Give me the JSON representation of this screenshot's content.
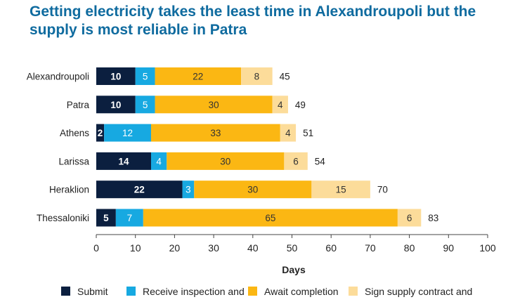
{
  "chart_data": {
    "type": "bar",
    "orientation": "horizontal",
    "stacked": true,
    "title": "Getting electricity takes the least time in Alexandroupoli but the supply is most reliable in Patra",
    "xlabel": "Days",
    "ylabel": "",
    "xlim": [
      0,
      100
    ],
    "xticks": [
      "0",
      "10",
      "20",
      "30",
      "40",
      "50",
      "60",
      "70",
      "80",
      "90",
      "100"
    ],
    "grid": false,
    "legend_position": "bottom",
    "categories": [
      "Alexandroupoli",
      "Patra",
      "Athens",
      "Larissa",
      "Heraklion",
      "Thessaloniki"
    ],
    "series": [
      {
        "name": "Submit",
        "values": [
          10,
          10,
          2,
          14,
          22,
          5
        ]
      },
      {
        "name": "Receive inspection and",
        "values": [
          5,
          5,
          12,
          4,
          3,
          7
        ]
      },
      {
        "name": "Await completion",
        "values": [
          22,
          30,
          33,
          30,
          30,
          65
        ]
      },
      {
        "name": "Sign supply contract and",
        "values": [
          8,
          4,
          4,
          6,
          15,
          6
        ]
      }
    ],
    "totals": [
      45,
      49,
      51,
      54,
      70,
      83
    ],
    "colors": [
      "#0b1f3f",
      "#17a9e1",
      "#fbb713",
      "#fcdc9a"
    ]
  }
}
